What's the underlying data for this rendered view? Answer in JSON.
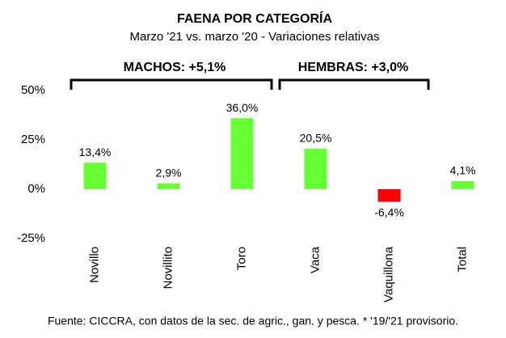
{
  "chart_data": {
    "type": "bar",
    "title": "FAENA POR CATEGORÍA",
    "subtitle": "Marzo '21 vs. marzo '20 - Variaciones relativas",
    "annotations": [
      "MACHOS: +5,1%",
      "HEMBRAS: +3,0%"
    ],
    "source": "Fuente: CICCRA, con datos de la sec. de agric., gan. y pesca. * '19/'21 provisorio.",
    "categories": [
      "Novillo",
      "Novillito",
      "Toro",
      "Vaca",
      "Vaquillona",
      "Total"
    ],
    "values": [
      13.4,
      2.9,
      36.0,
      20.5,
      -6.4,
      4.1
    ],
    "value_labels": [
      "13,4%",
      "2,9%",
      "36,0%",
      "20,5%",
      "-6,4%",
      "4,1%"
    ],
    "colors": [
      "#66ff33",
      "#66ff33",
      "#66ff33",
      "#66ff33",
      "#ff0000",
      "#66ff33"
    ],
    "ylim": [
      -25,
      50
    ],
    "yticks": [
      {
        "value": -25,
        "label": "-25%"
      },
      {
        "value": 0,
        "label": "0%"
      },
      {
        "value": 25,
        "label": "25%"
      },
      {
        "value": 50,
        "label": "50%"
      }
    ],
    "grid": false
  }
}
